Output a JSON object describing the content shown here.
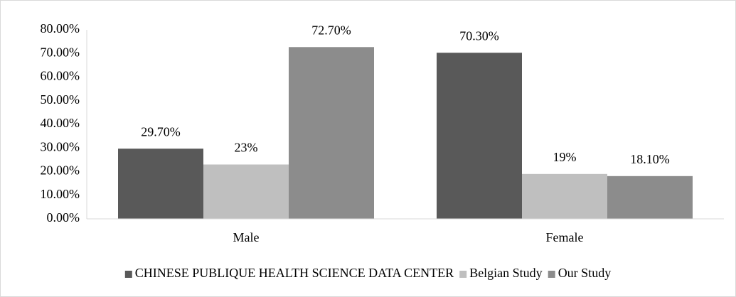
{
  "chart_data": {
    "type": "bar",
    "categories": [
      "Male",
      "Female"
    ],
    "series": [
      {
        "name": "CHINESE PUBLIQUE HEALTH SCIENCE DATA CENTER",
        "color": "#595959",
        "values": [
          29.7,
          70.3
        ],
        "value_labels": [
          "29.70%",
          "70.30%"
        ]
      },
      {
        "name": "Belgian Study",
        "color": "#bfbfbf",
        "values": [
          23,
          19
        ],
        "value_labels": [
          "23%",
          "19%"
        ]
      },
      {
        "name": "Our Study",
        "color": "#8c8c8c",
        "values": [
          72.7,
          18.1
        ],
        "value_labels": [
          "72.70%",
          "18.10%"
        ]
      }
    ],
    "ylim": [
      0,
      80
    ],
    "yticks": [
      {
        "value": 0,
        "label": "0.00%"
      },
      {
        "value": 10,
        "label": "10.00%"
      },
      {
        "value": 20,
        "label": "20.00%"
      },
      {
        "value": 30,
        "label": "30.00%"
      },
      {
        "value": 40,
        "label": "40.00%"
      },
      {
        "value": 50,
        "label": "50.00%"
      },
      {
        "value": 60,
        "label": "60.00%"
      },
      {
        "value": 70,
        "label": "70.00%"
      },
      {
        "value": 80,
        "label": "80.00%"
      }
    ],
    "grid": false,
    "legend": "bottom"
  }
}
